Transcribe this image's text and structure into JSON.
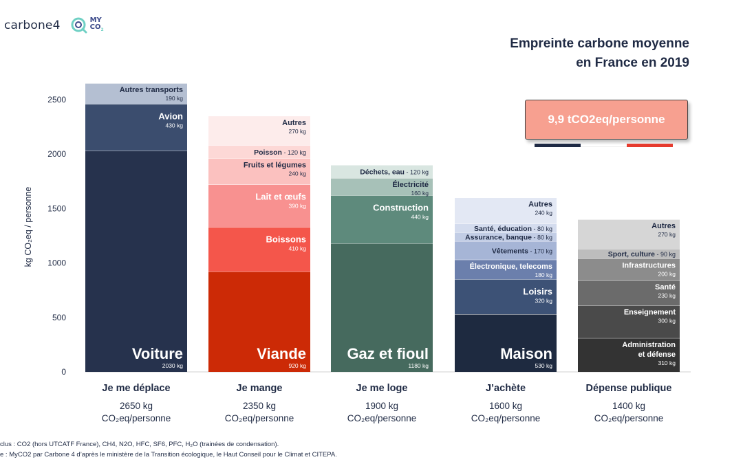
{
  "brand": {
    "name": "carbone4",
    "partner_line1": "MY",
    "partner_line2": "CO",
    "partner_sub": "2"
  },
  "title": {
    "line1": "Empreinte carbone moyenne",
    "line2": "en France en 2019"
  },
  "badge": {
    "text": "9,9 tCO2eq/personne"
  },
  "colors": {
    "flag_blue": "#1f2a44",
    "flag_white": "#ffffff",
    "flag_red": "#e63b2e",
    "badge_bg": "#f7a090"
  },
  "footnotes": {
    "line1": "clus : CO2 (hors UTCATF France), CH4, N2O, HFC, SF6, PFC, H₂O (trainées de condensation).",
    "line2": "e : MyCO2 par Carbone 4 d’après le ministère de la Transition écologique, le Haut Conseil pour le Climat et CITEPA."
  },
  "chart_data": {
    "type": "bar",
    "stacked": true,
    "ylabel": "kg CO₂eq / personne",
    "ylim": [
      0,
      2650
    ],
    "yticks": [
      0,
      500,
      1000,
      1500,
      2000,
      2500
    ],
    "grid": false,
    "unit_line2": "CO₂eq/personne",
    "categories": [
      {
        "name": "Je me déplace",
        "total_label": "2650 kg",
        "segments": [
          {
            "name": "Voiture",
            "value": 2030,
            "value_label": "2030 kg",
            "color": "#26324d",
            "style": "big"
          },
          {
            "name": "Avion",
            "value": 430,
            "value_label": "430 kg",
            "color": "#3b4d6e",
            "style": "medium"
          },
          {
            "name": "Autres transports",
            "value": 190,
            "value_label": "190 kg",
            "color": "#b4bfd2",
            "style": "small"
          }
        ]
      },
      {
        "name": "Je mange",
        "total_label": "2350 kg",
        "segments": [
          {
            "name": "Viande",
            "value": 920,
            "value_label": "920 kg",
            "color": "#cc2a06",
            "style": "big"
          },
          {
            "name": "Boissons",
            "value": 410,
            "value_label": "410 kg",
            "color": "#f4564b",
            "style": "medium"
          },
          {
            "name": "Lait et œufs",
            "value": 390,
            "value_label": "390 kg",
            "color": "#f89190",
            "style": "medium"
          },
          {
            "name": "Fruits et légumes",
            "value": 240,
            "value_label": "240 kg",
            "color": "#fbc1bf",
            "style": "small"
          },
          {
            "name": "Poisson",
            "value": 120,
            "value_label": "120 kg",
            "color": "#fdd8d6",
            "style": "inline"
          },
          {
            "name": "Autres",
            "value": 270,
            "value_label": "270 kg",
            "color": "#fdeceb",
            "style": "small"
          }
        ]
      },
      {
        "name": "Je me loge",
        "total_label": "1900 kg",
        "segments": [
          {
            "name": "Gaz et fioul",
            "value": 1180,
            "value_label": "1180 kg",
            "color": "#466a5e",
            "style": "big"
          },
          {
            "name": "Construction",
            "value": 440,
            "value_label": "440 kg",
            "color": "#5e8a7c",
            "style": "medium"
          },
          {
            "name": "Électricité",
            "value": 160,
            "value_label": "160 kg",
            "color": "#a7c1b8",
            "style": "small"
          },
          {
            "name": "Déchets, eau",
            "value": 120,
            "value_label": "120 kg",
            "color": "#d9e6e1",
            "style": "inline"
          }
        ]
      },
      {
        "name": "J’achète",
        "total_label": "1600 kg",
        "segments": [
          {
            "name": "Maison",
            "value": 530,
            "value_label": "530 kg",
            "color": "#1e2a40",
            "style": "big"
          },
          {
            "name": "Loisirs",
            "value": 320,
            "value_label": "320 kg",
            "color": "#3d5276",
            "style": "medium"
          },
          {
            "name": "Électronique, telecoms",
            "value": 180,
            "value_label": "180 kg",
            "color": "#6b7fac",
            "style": "small-white"
          },
          {
            "name": "Vêtements",
            "value": 170,
            "value_label": "170 kg",
            "color": "#a6b5d6",
            "style": "inline"
          },
          {
            "name": "Assurance, banque",
            "value": 80,
            "value_label": "80 kg",
            "color": "#c2cde5",
            "style": "inline"
          },
          {
            "name": "Santé, éducation",
            "value": 80,
            "value_label": "80 kg",
            "color": "#d4dcee",
            "style": "inline"
          },
          {
            "name": "Autres",
            "value": 240,
            "value_label": "240 kg",
            "color": "#e3e8f4",
            "style": "small"
          }
        ]
      },
      {
        "name": "Dépense publique",
        "total_label": "1400 kg",
        "segments": [
          {
            "name": "Administration et défense",
            "value": 310,
            "value_label": "310 kg",
            "color": "#333333",
            "style": "small-white"
          },
          {
            "name": "Enseignement",
            "value": 300,
            "value_label": "300 kg",
            "color": "#4a4a4a",
            "style": "small-white"
          },
          {
            "name": "Santé",
            "value": 230,
            "value_label": "230 kg",
            "color": "#6b6b6b",
            "style": "small-white"
          },
          {
            "name": "Infrastructures",
            "value": 200,
            "value_label": "200 kg",
            "color": "#8c8c8c",
            "style": "small-white"
          },
          {
            "name": "Sport, culture",
            "value": 90,
            "value_label": "90 kg",
            "color": "#bdbdbd",
            "style": "inline"
          },
          {
            "name": "Autres",
            "value": 270,
            "value_label": "270 kg",
            "color": "#d6d6d6",
            "style": "small"
          }
        ]
      }
    ]
  }
}
